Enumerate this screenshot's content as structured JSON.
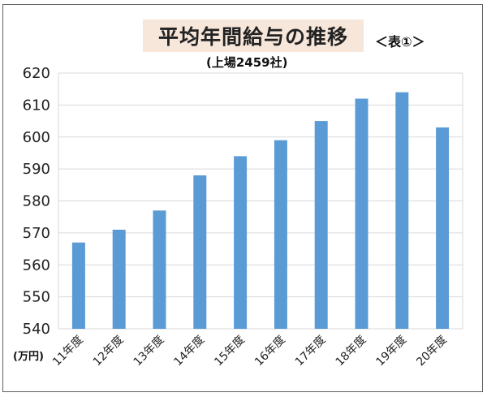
{
  "chart_data": {
    "type": "bar",
    "title": "平均年間給与の推移",
    "title_tag": "＜表①＞",
    "subtitle": "(上場2459社)",
    "unit_label": "(万円)",
    "categories": [
      "11年度",
      "12年度",
      "13年度",
      "14年度",
      "15年度",
      "16年度",
      "17年度",
      "18年度",
      "19年度",
      "20年度"
    ],
    "values": [
      567,
      571,
      577,
      588,
      594,
      599,
      605,
      612,
      614,
      603
    ],
    "ylim": [
      540,
      620
    ],
    "yticks": [
      620,
      610,
      600,
      590,
      580,
      570,
      560,
      550,
      540
    ],
    "grid": true,
    "bar_color": "#5b9bd5",
    "grid_color": "#d9d9d9",
    "title_bg_color": "#f7e6da"
  }
}
